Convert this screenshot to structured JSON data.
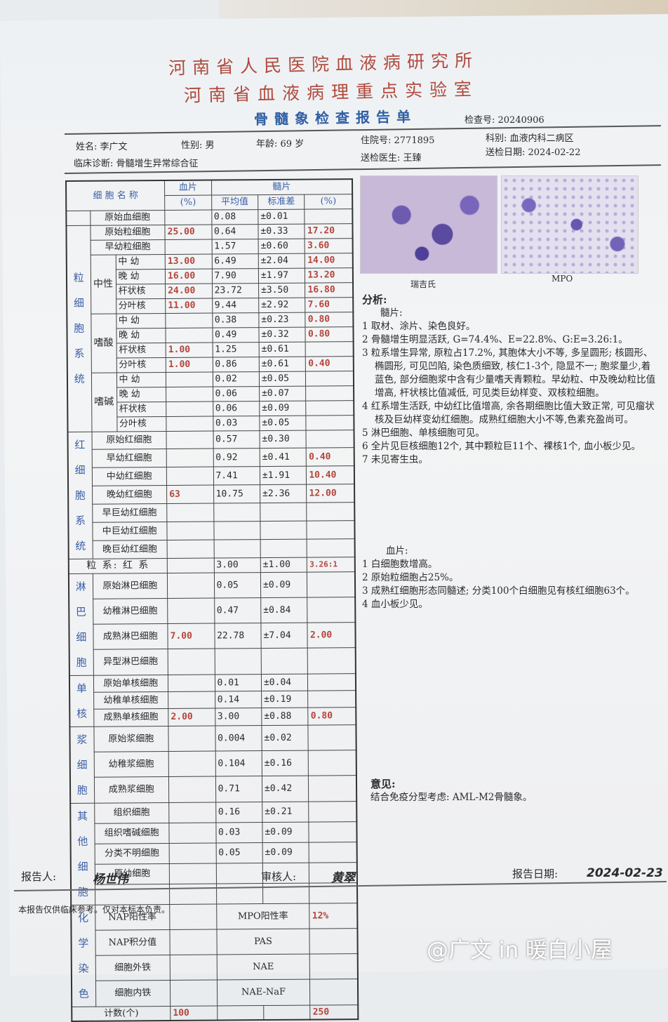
{
  "header": {
    "title1": "河南省人民医院血液病研究所",
    "title2": "河南省血液病理重点实验室",
    "title3": "骨髓象检查报告单",
    "exam_no": "检查号: 20240906"
  },
  "patient": {
    "name": "姓名: 李广文",
    "sex": "性别: 男",
    "age": "年龄: 69 岁",
    "inpatient_no": "住院号: 2771895",
    "department": "科别: 血液内科二病区",
    "diagnosis": "临床诊断: 骨髓增生异常综合征",
    "doctor": "送检医生: 王臻",
    "date": "送检日期: 2024-02-22"
  },
  "table": {
    "head": {
      "cell_name": "细 胞 名 称",
      "blood": "血片",
      "marrow": "髓片",
      "blood_pct": "(%)",
      "mean": "平均值",
      "sd": "标准差",
      "marrow_pct": "(%)"
    },
    "groups": [
      {
        "label": "",
        "items": [
          {
            "name": "原始血细胞",
            "mean": "0.08",
            "sd": "±0.01"
          }
        ]
      },
      {
        "label": "粒细胞系统",
        "items": [
          {
            "name": "原始粒细胞",
            "blood": "25.00",
            "mean": "0.64",
            "sd": "±0.33",
            "pct": "17.20"
          },
          {
            "name": "早幼粒细胞",
            "mean": "1.57",
            "sd": "±0.60",
            "pct": "3.60"
          },
          {
            "sub": "中性",
            "rows": [
              {
                "name": "中 幼",
                "blood": "13.00",
                "mean": "6.49",
                "sd": "±2.04",
                "pct": "14.00"
              },
              {
                "name": "晚 幼",
                "blood": "16.00",
                "mean": "7.90",
                "sd": "±1.97",
                "pct": "13.20"
              },
              {
                "name": "杆状核",
                "blood": "24.00",
                "mean": "23.72",
                "sd": "±3.50",
                "pct": "16.80"
              },
              {
                "name": "分叶核",
                "blood": "11.00",
                "mean": "9.44",
                "sd": "±2.92",
                "pct": "7.60"
              }
            ]
          },
          {
            "sub": "嗜酸",
            "rows": [
              {
                "name": "中 幼",
                "mean": "0.38",
                "sd": "±0.23",
                "pct": "0.80"
              },
              {
                "name": "晚 幼",
                "mean": "0.49",
                "sd": "±0.32",
                "pct": "0.80"
              },
              {
                "name": "杆状核",
                "blood": "1.00",
                "mean": "1.25",
                "sd": "±0.61"
              },
              {
                "name": "分叶核",
                "blood": "1.00",
                "mean": "0.86",
                "sd": "±0.61",
                "pct": "0.40"
              }
            ]
          },
          {
            "sub": "嗜碱",
            "rows": [
              {
                "name": "中 幼",
                "mean": "0.02",
                "sd": "±0.05"
              },
              {
                "name": "晚 幼",
                "mean": "0.06",
                "sd": "±0.07"
              },
              {
                "name": "杆状核",
                "mean": "0.06",
                "sd": "±0.09"
              },
              {
                "name": "分叶核",
                "mean": "0.03",
                "sd": "±0.05"
              }
            ]
          }
        ]
      },
      {
        "label": "红细胞系统",
        "items": [
          {
            "name": "原始红细胞",
            "mean": "0.57",
            "sd": "±0.30"
          },
          {
            "name": "早幼红细胞",
            "mean": "0.92",
            "sd": "±0.41",
            "pct": "0.40"
          },
          {
            "name": "中幼红细胞",
            "mean": "7.41",
            "sd": "±1.91",
            "pct": "10.40"
          },
          {
            "name": "晚幼红细胞",
            "blood": "63",
            "mean": "10.75",
            "sd": "±2.36",
            "pct": "12.00"
          },
          {
            "name": "早巨幼红细胞"
          },
          {
            "name": "中巨幼红细胞"
          },
          {
            "name": "晚巨幼红细胞"
          }
        ]
      },
      {
        "ratio": true,
        "name": "粒 系: 红 系",
        "mean": "3.00",
        "sd": "±1.00",
        "pct": "3.26:1"
      },
      {
        "label": "淋巴细胞",
        "items": [
          {
            "name": "原始淋巴细胞",
            "mean": "0.05",
            "sd": "±0.09"
          },
          {
            "name": "幼稚淋巴细胞",
            "mean": "0.47",
            "sd": "±0.84"
          },
          {
            "name": "成熟淋巴细胞",
            "blood": "7.00",
            "mean": "22.78",
            "sd": "±7.04",
            "pct": "2.00"
          },
          {
            "name": "异型淋巴细胞"
          }
        ]
      },
      {
        "label": "单核",
        "items": [
          {
            "name": "原始单核细胞",
            "mean": "0.01",
            "sd": "±0.04"
          },
          {
            "name": "幼稚单核细胞",
            "mean": "0.14",
            "sd": "±0.19"
          },
          {
            "name": "成熟单核细胞",
            "blood": "2.00",
            "mean": "3.00",
            "sd": "±0.88",
            "pct": "0.80"
          }
        ]
      },
      {
        "label": "浆细胞",
        "items": [
          {
            "name": "原始浆细胞",
            "mean": "0.004",
            "sd": "±0.02"
          },
          {
            "name": "幼稚浆细胞",
            "mean": "0.104",
            "sd": "±0.16"
          },
          {
            "name": "成熟浆细胞",
            "mean": "0.71",
            "sd": "±0.42"
          }
        ]
      },
      {
        "label": "其他细胞",
        "items": [
          {
            "name": "组织细胞",
            "mean": "0.16",
            "sd": "±0.21"
          },
          {
            "name": "组织嗜碱细胞",
            "mean": "0.03",
            "sd": "±0.09"
          },
          {
            "name": "分类不明细胞",
            "mean": "0.05",
            "sd": "±0.09"
          },
          {
            "name": "原幼细胞"
          },
          {
            "name": ""
          }
        ]
      }
    ],
    "stain": {
      "label": "化学染色",
      "rows": [
        {
          "name": "NAP阳性率",
          "mid": "MPO阳性率",
          "pct": "12%"
        },
        {
          "name": "NAP积分值",
          "mid": "PAS"
        },
        {
          "name": "细胞外铁",
          "mid": "NAE"
        },
        {
          "name": "细胞内铁",
          "mid": "NAE-NaF"
        }
      ]
    },
    "count": {
      "label": "计数(个)",
      "blood": "100",
      "pct": "250"
    }
  },
  "images": {
    "wright_caption": "瑞吉氏",
    "mpo_caption": "MPO"
  },
  "analysis": {
    "title": "分析:",
    "marrow_title": "髓片:",
    "marrow_items": [
      "1 取材、涂片、染色良好。",
      "2 骨髓增生明显活跃, G=74.4%、E=22.8%、G:E=3.26:1。",
      "3 粒系增生异常, 原粒占17.2%, 其胞体大小不等, 多呈圆形; 核圆形、椭圆形, 可见凹陷, 染色质细致, 核仁1-3个, 隐显不一; 胞浆量少,着蓝色, 部分细胞浆中含有少量嗜天青颗粒。早幼粒、中及晚幼粒比值增高, 杆状核比值减低, 可见类巨幼样变、双核粒细胞。",
      "4 红系增生活跃, 中幼红比值增高, 余各期细胞比值大致正常, 可见瘤状核及巨幼样变幼红细胞。成熟红细胞大小不等,色素充盈尚可。",
      "5 淋巴细胞、单核细胞可见。",
      "6 全片见巨核细胞12个, 其中颗粒巨11个、裸核1个, 血小板少见。",
      "7 未见寄生虫。"
    ],
    "blood_title": "血片:",
    "blood_items": [
      "1 白细胞数增高。",
      "2 原始粒细胞占25%。",
      "3 成熟红细胞形态同髓述; 分类100个白细胞见有核红细胞63个。",
      "4 血小板少见。"
    ]
  },
  "opinion": {
    "title": "意见:",
    "text": "结合免疫分型考虑: AML-M2骨髓象。"
  },
  "footer": {
    "reporter_label": "报告人:",
    "reporter": "杨世伟",
    "reviewer_label": "审核人:",
    "reviewer": "黄翠",
    "date_label": "报告日期:",
    "date": "2024-02-23",
    "disclaimer": "本报告仅供临床参考。仅对本标本负责。"
  },
  "watermark": "@广文 in 暖白小屋",
  "colors": {
    "title_red": "#b04a3e",
    "subtitle_blue": "#2f5fa5",
    "value_red": "#b5443a"
  }
}
